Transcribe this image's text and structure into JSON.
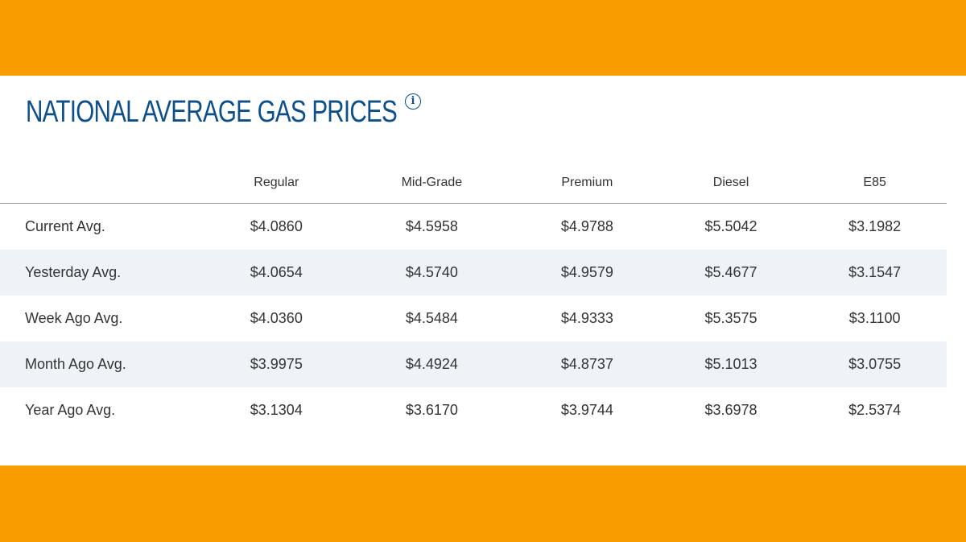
{
  "title": "NATIONAL AVERAGE GAS PRICES",
  "info_icon": "info-icon",
  "colors": {
    "band": "#f89c00",
    "title": "#0d4f86",
    "stripe": "#eef3f8"
  },
  "table": {
    "columns": [
      "Regular",
      "Mid-Grade",
      "Premium",
      "Diesel",
      "E85"
    ],
    "rows": [
      {
        "label": "Current Avg.",
        "values": [
          "$4.0860",
          "$4.5958",
          "$4.9788",
          "$5.5042",
          "$3.1982"
        ]
      },
      {
        "label": "Yesterday Avg.",
        "values": [
          "$4.0654",
          "$4.5740",
          "$4.9579",
          "$5.4677",
          "$3.1547"
        ]
      },
      {
        "label": "Week Ago Avg.",
        "values": [
          "$4.0360",
          "$4.5484",
          "$4.9333",
          "$5.3575",
          "$3.1100"
        ]
      },
      {
        "label": "Month Ago Avg.",
        "values": [
          "$3.9975",
          "$4.4924",
          "$4.8737",
          "$5.1013",
          "$3.0755"
        ]
      },
      {
        "label": "Year Ago Avg.",
        "values": [
          "$3.1304",
          "$3.6170",
          "$3.9744",
          "$3.6978",
          "$2.5374"
        ]
      }
    ]
  }
}
